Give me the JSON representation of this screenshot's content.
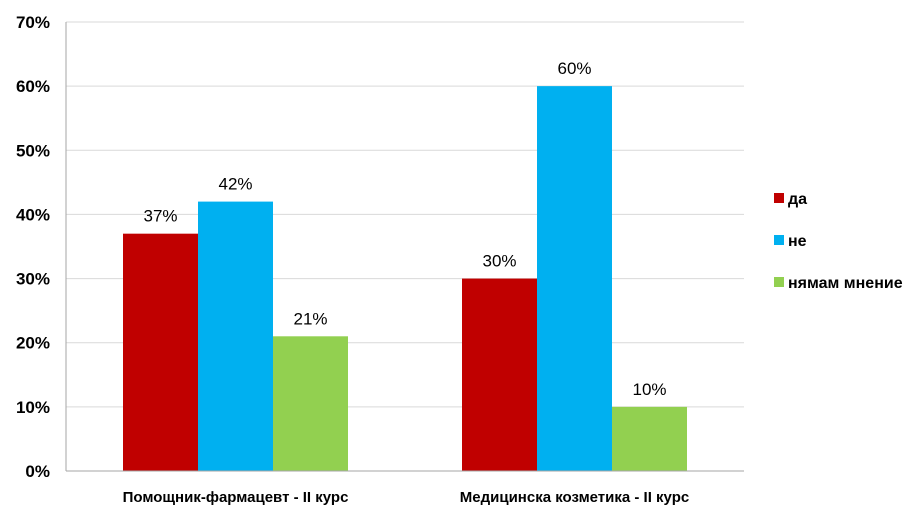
{
  "chart_data": {
    "type": "bar",
    "categories": [
      "Помощник-фармацевт - II курс",
      "Медицинска козметика - II курс"
    ],
    "series": [
      {
        "name": "да",
        "values": [
          37,
          30
        ],
        "labels": [
          "37%",
          "30%"
        ],
        "color": "#C00000"
      },
      {
        "name": "не",
        "values": [
          42,
          60
        ],
        "labels": [
          "42%",
          "60%"
        ],
        "color": "#00B0F0"
      },
      {
        "name": "нямам мнение",
        "values": [
          21,
          10
        ],
        "labels": [
          "21%",
          "10%"
        ],
        "color": "#92D050"
      }
    ],
    "yticks": [
      "0%",
      "10%",
      "20%",
      "30%",
      "40%",
      "50%",
      "60%",
      "70%"
    ],
    "ylim": [
      0,
      70
    ],
    "grid": true,
    "legend_position": "right"
  }
}
